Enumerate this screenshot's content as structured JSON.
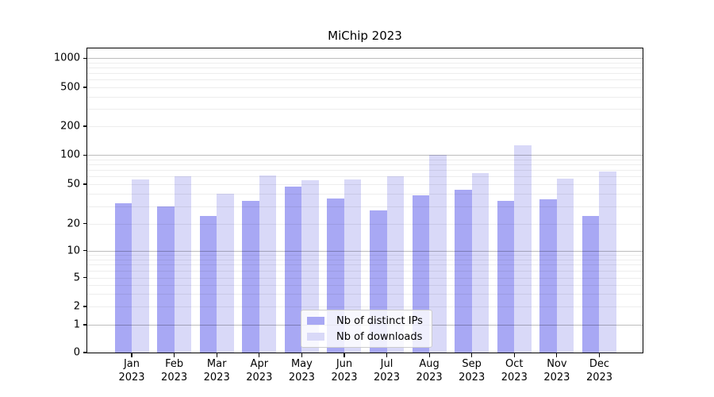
{
  "chart_data": {
    "type": "bar",
    "title": "MiChip 2023",
    "categories": [
      "Jan",
      "Feb",
      "Mar",
      "Apr",
      "May",
      "Jun",
      "Jul",
      "Aug",
      "Sep",
      "Oct",
      "Nov",
      "Dec"
    ],
    "year": "2023",
    "series": [
      {
        "name": "Nb of distinct IPs",
        "color": "#a8a8f4",
        "values": [
          32,
          30,
          24,
          34,
          47,
          36,
          27,
          39,
          44,
          34,
          35,
          24
        ]
      },
      {
        "name": "Nb of downloads",
        "color": "#d9d9f8",
        "values": [
          56,
          60,
          40,
          62,
          55,
          56,
          60,
          100,
          65,
          127,
          57,
          68
        ]
      }
    ],
    "yticks": [
      0,
      1,
      2,
      5,
      10,
      20,
      50,
      100,
      200,
      500,
      1000
    ],
    "ytick_labels": [
      "0",
      "1",
      "2",
      "5",
      "10",
      "20",
      "50",
      "100",
      "200",
      "500",
      "1000"
    ],
    "ylim": [
      0,
      1260
    ],
    "yscale": "symlog",
    "xlabel": "",
    "ylabel": "",
    "grid": "horizontal major+minor",
    "legend_position": "lower center"
  },
  "colors": {
    "bar_distinct_ips": "#a8a8f4",
    "bar_downloads": "#d9d9f8",
    "grid_minor": "#ededed",
    "grid_decade": "#bdbdbd",
    "axis": "#000000",
    "background": "#ffffff"
  }
}
